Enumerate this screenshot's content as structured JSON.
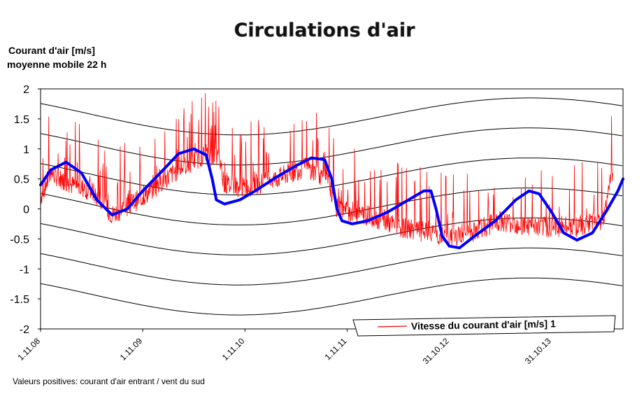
{
  "chart_data": {
    "type": "line",
    "title": "Circulations d'air",
    "ylabel_line1": "Courant d'air [m/s]",
    "ylabel_line2": "moyenne mobile 22 h",
    "ylim": [
      -2,
      2
    ],
    "yticks": [
      "2",
      "1.5",
      "1",
      "0.5",
      "0",
      "-0.5",
      "-1",
      "-1.5",
      "-2"
    ],
    "yticks_values": [
      2,
      1.5,
      1,
      0.5,
      0,
      -0.5,
      -1,
      -1.5,
      -2
    ],
    "xticks": [
      "1.11.08",
      "1.11.09",
      "1.11.10",
      "1.11.11",
      "31.10.12",
      "31.10.13"
    ],
    "xlim_years": [
      0,
      5.7
    ],
    "grid": true,
    "legend_position": "bottom-right",
    "series": [
      {
        "name": "Vitesse du courant d'air [m/s] 1",
        "color": "#ff0000",
        "description_points": [
          [
            0.0,
            0.2
          ],
          [
            0.1,
            0.6
          ],
          [
            0.3,
            0.4
          ],
          [
            0.5,
            0.3
          ],
          [
            0.7,
            -0.1
          ],
          [
            1.0,
            0.2
          ],
          [
            1.3,
            0.6
          ],
          [
            1.6,
            0.9
          ],
          [
            1.75,
            0.85
          ],
          [
            1.8,
            0.4
          ],
          [
            2.0,
            0.35
          ],
          [
            2.3,
            0.5
          ],
          [
            2.6,
            0.7
          ],
          [
            2.8,
            0.5
          ],
          [
            2.9,
            0.0
          ],
          [
            3.2,
            -0.1
          ],
          [
            3.5,
            -0.3
          ],
          [
            3.8,
            -0.4
          ],
          [
            4.0,
            -0.5
          ],
          [
            4.2,
            -0.4
          ],
          [
            4.5,
            -0.2
          ],
          [
            4.8,
            -0.3
          ],
          [
            5.2,
            -0.3
          ],
          [
            5.5,
            -0.2
          ],
          [
            5.6,
            0.6
          ]
        ]
      },
      {
        "name": "",
        "color": "#0000ff",
        "points": [
          [
            0.0,
            0.4
          ],
          [
            0.1,
            0.65
          ],
          [
            0.25,
            0.78
          ],
          [
            0.4,
            0.6
          ],
          [
            0.55,
            0.15
          ],
          [
            0.7,
            -0.1
          ],
          [
            0.85,
            0.0
          ],
          [
            1.0,
            0.3
          ],
          [
            1.2,
            0.65
          ],
          [
            1.35,
            0.92
          ],
          [
            1.5,
            1.0
          ],
          [
            1.62,
            0.9
          ],
          [
            1.68,
            0.5
          ],
          [
            1.72,
            0.15
          ],
          [
            1.8,
            0.08
          ],
          [
            1.95,
            0.15
          ],
          [
            2.1,
            0.3
          ],
          [
            2.3,
            0.52
          ],
          [
            2.5,
            0.72
          ],
          [
            2.65,
            0.85
          ],
          [
            2.78,
            0.82
          ],
          [
            2.85,
            0.5
          ],
          [
            2.9,
            0.0
          ],
          [
            2.95,
            -0.2
          ],
          [
            3.05,
            -0.25
          ],
          [
            3.2,
            -0.2
          ],
          [
            3.4,
            -0.05
          ],
          [
            3.6,
            0.15
          ],
          [
            3.75,
            0.3
          ],
          [
            3.82,
            0.3
          ],
          [
            3.87,
            0.0
          ],
          [
            3.93,
            -0.45
          ],
          [
            4.0,
            -0.62
          ],
          [
            4.1,
            -0.65
          ],
          [
            4.25,
            -0.45
          ],
          [
            4.45,
            -0.2
          ],
          [
            4.65,
            0.15
          ],
          [
            4.78,
            0.3
          ],
          [
            4.88,
            0.25
          ],
          [
            5.0,
            -0.05
          ],
          [
            5.12,
            -0.4
          ],
          [
            5.25,
            -0.52
          ],
          [
            5.4,
            -0.4
          ],
          [
            5.55,
            0.0
          ],
          [
            5.65,
            0.3
          ],
          [
            5.7,
            0.5
          ]
        ]
      }
    ]
  },
  "note": "Valeurs positives: courant d'air entrant / vent du sud",
  "colors": {
    "series_red": "#ff0000",
    "series_blue": "#0000ff",
    "grid": "#000000"
  }
}
